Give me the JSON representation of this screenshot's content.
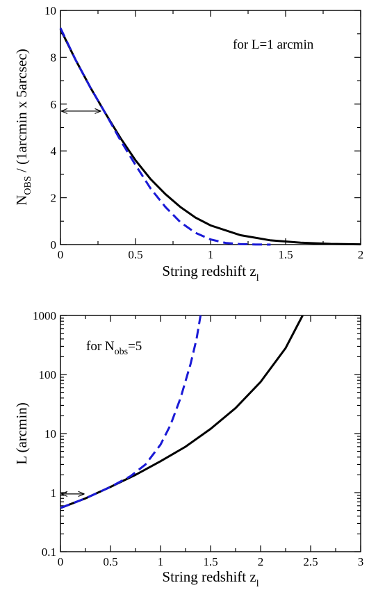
{
  "colors": {
    "solid": "#000000",
    "dashed": "#1a1ad6"
  },
  "chart_data": [
    {
      "type": "line",
      "xlabel_main": "String redshift z",
      "xlabel_sub": "l",
      "ylabel_main": "N",
      "ylabel_sub": "OBS",
      "ylabel_rest": " / (1arcmin x  5arcsec)",
      "annotation": "for L=1 arcmin",
      "xlim": [
        0,
        2
      ],
      "ylim": [
        0,
        10
      ],
      "yscale": "linear",
      "x_ticks": [
        0,
        0.5,
        1,
        1.5,
        2
      ],
      "x_tick_labels": [
        "0",
        "0.5",
        "1",
        "1.5",
        "2"
      ],
      "y_ticks": [
        0,
        2,
        4,
        6,
        8,
        10
      ],
      "y_tick_labels": [
        "0",
        "2",
        "4",
        "6",
        "8",
        "10"
      ],
      "arrow": {
        "from_x": 0,
        "to_x": 0.27,
        "y": 5.7
      },
      "series": [
        {
          "style": "solid",
          "x": [
            0,
            0.1,
            0.2,
            0.3,
            0.4,
            0.5,
            0.6,
            0.7,
            0.8,
            0.9,
            1.0,
            1.2,
            1.4,
            1.6,
            1.8,
            2.0
          ],
          "y": [
            9.2,
            7.9,
            6.7,
            5.6,
            4.55,
            3.6,
            2.8,
            2.15,
            1.6,
            1.15,
            0.82,
            0.4,
            0.18,
            0.08,
            0.03,
            0.01
          ]
        },
        {
          "style": "dashed",
          "x": [
            0,
            0.1,
            0.2,
            0.3,
            0.4,
            0.5,
            0.6,
            0.7,
            0.8,
            0.9,
            1.0,
            1.1,
            1.2,
            1.3,
            1.4
          ],
          "y": [
            9.25,
            7.9,
            6.7,
            5.6,
            4.45,
            3.4,
            2.4,
            1.6,
            0.95,
            0.5,
            0.22,
            0.07,
            0.02,
            0.005,
            0
          ]
        }
      ]
    },
    {
      "type": "line",
      "xlabel_main": "String redshift z",
      "xlabel_sub": "l",
      "ylabel_main": "L (arcmin)",
      "annotation_main": "for N",
      "annotation_sub": "obs",
      "annotation_rest": "=5",
      "xlim": [
        0,
        3
      ],
      "ylim": [
        0.1,
        1000
      ],
      "yscale": "log",
      "x_ticks": [
        0,
        0.5,
        1,
        1.5,
        2,
        2.5,
        3
      ],
      "x_tick_labels": [
        "0",
        "0.5",
        "1",
        "1.5",
        "2",
        "2.5",
        "3"
      ],
      "y_ticks": [
        0.1,
        1,
        10,
        100,
        1000
      ],
      "y_tick_labels": [
        "0.1",
        "1",
        "10",
        "100",
        "1000"
      ],
      "arrow": {
        "from_x": 0,
        "to_x": 0.24,
        "y": 0.95
      },
      "series": [
        {
          "style": "solid",
          "x": [
            0,
            0.25,
            0.5,
            0.75,
            1.0,
            1.25,
            1.5,
            1.75,
            2.0,
            2.25,
            2.42
          ],
          "y": [
            0.55,
            0.8,
            1.25,
            2.0,
            3.4,
            6.0,
            12.0,
            27.0,
            75.0,
            280.0,
            1000.0
          ]
        },
        {
          "style": "dashed",
          "x": [
            0,
            0.25,
            0.5,
            0.7,
            0.85,
            1.0,
            1.1,
            1.2,
            1.3,
            1.36,
            1.4
          ],
          "y": [
            0.55,
            0.8,
            1.25,
            1.9,
            3.0,
            6.5,
            14.0,
            40.0,
            150.0,
            400.0,
            1000.0
          ]
        }
      ]
    }
  ]
}
